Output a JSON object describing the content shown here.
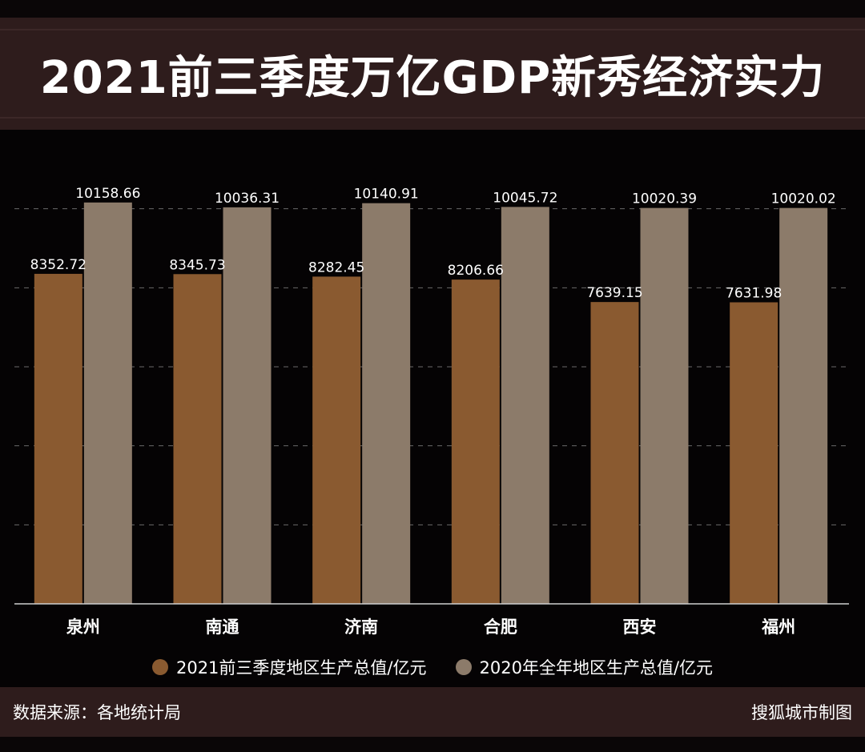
{
  "title": "2021前三季度万亿GDP新秀经济实力",
  "chart_data": {
    "type": "bar",
    "categories": [
      "泉州",
      "南通",
      "济南",
      "合肥",
      "西安",
      "福州"
    ],
    "series": [
      {
        "name": "2021前三季度地区生产总值/亿元",
        "color": "#8a5a30",
        "values": [
          8352.72,
          8345.73,
          8282.45,
          8206.66,
          7639.15,
          7631.98
        ],
        "labels": [
          "8352.72",
          "8345.73",
          "8282.45",
          "8206.66",
          "7639.15",
          "7631.98"
        ]
      },
      {
        "name": "2020年全年地区生产总值/亿元",
        "color": "#8c7b6a",
        "values": [
          10158.66,
          10036.31,
          10140.91,
          10045.72,
          10020.39,
          10020.02
        ],
        "labels": [
          "10158.66",
          "10036.31",
          "10140.91",
          "10045.72",
          "10020.39",
          "10020.02"
        ]
      }
    ],
    "ylim": [
      0,
      12000
    ],
    "grid": true,
    "legend_position": "bottom"
  },
  "footer": {
    "source": "数据来源：各地统计局",
    "credit": "搜狐城市制图"
  }
}
